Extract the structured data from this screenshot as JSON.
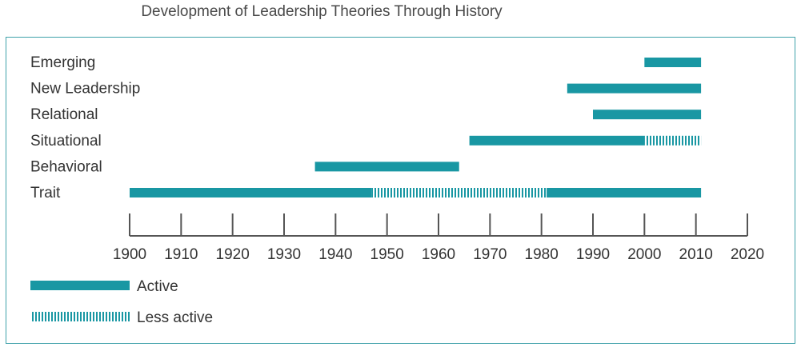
{
  "title": "Development of Leadership Theories Through History",
  "colors": {
    "active": "#1997a3",
    "less_active": "#1997a3",
    "axis": "#555555",
    "text": "#333333"
  },
  "chart_data": {
    "type": "timeline",
    "title": "Development of Leadership Theories Through History",
    "xlim": [
      1900,
      2020
    ],
    "x_ticks": [
      1900,
      1910,
      1920,
      1930,
      1940,
      1950,
      1960,
      1970,
      1980,
      1990,
      2000,
      2010,
      2020
    ],
    "categories": [
      "Emerging",
      "New Leadership",
      "Relational",
      "Situational",
      "Behavioral",
      "Trait"
    ],
    "segments": [
      {
        "category": "Emerging",
        "start": 2000,
        "end": 2011,
        "status": "active"
      },
      {
        "category": "New Leadership",
        "start": 1985,
        "end": 2011,
        "status": "active"
      },
      {
        "category": "Relational",
        "start": 1990,
        "end": 2011,
        "status": "active"
      },
      {
        "category": "Situational",
        "start": 1966,
        "end": 2000,
        "status": "active"
      },
      {
        "category": "Situational",
        "start": 2000,
        "end": 2011,
        "status": "less_active"
      },
      {
        "category": "Behavioral",
        "start": 1936,
        "end": 1964,
        "status": "active"
      },
      {
        "category": "Trait",
        "start": 1900,
        "end": 1947,
        "status": "active"
      },
      {
        "category": "Trait",
        "start": 1947,
        "end": 1981,
        "status": "less_active"
      },
      {
        "category": "Trait",
        "start": 1981,
        "end": 2011,
        "status": "active"
      }
    ],
    "legend": [
      {
        "key": "active",
        "label": "Active"
      },
      {
        "key": "less_active",
        "label": "Less active"
      }
    ],
    "legend_position": "bottom-left"
  }
}
